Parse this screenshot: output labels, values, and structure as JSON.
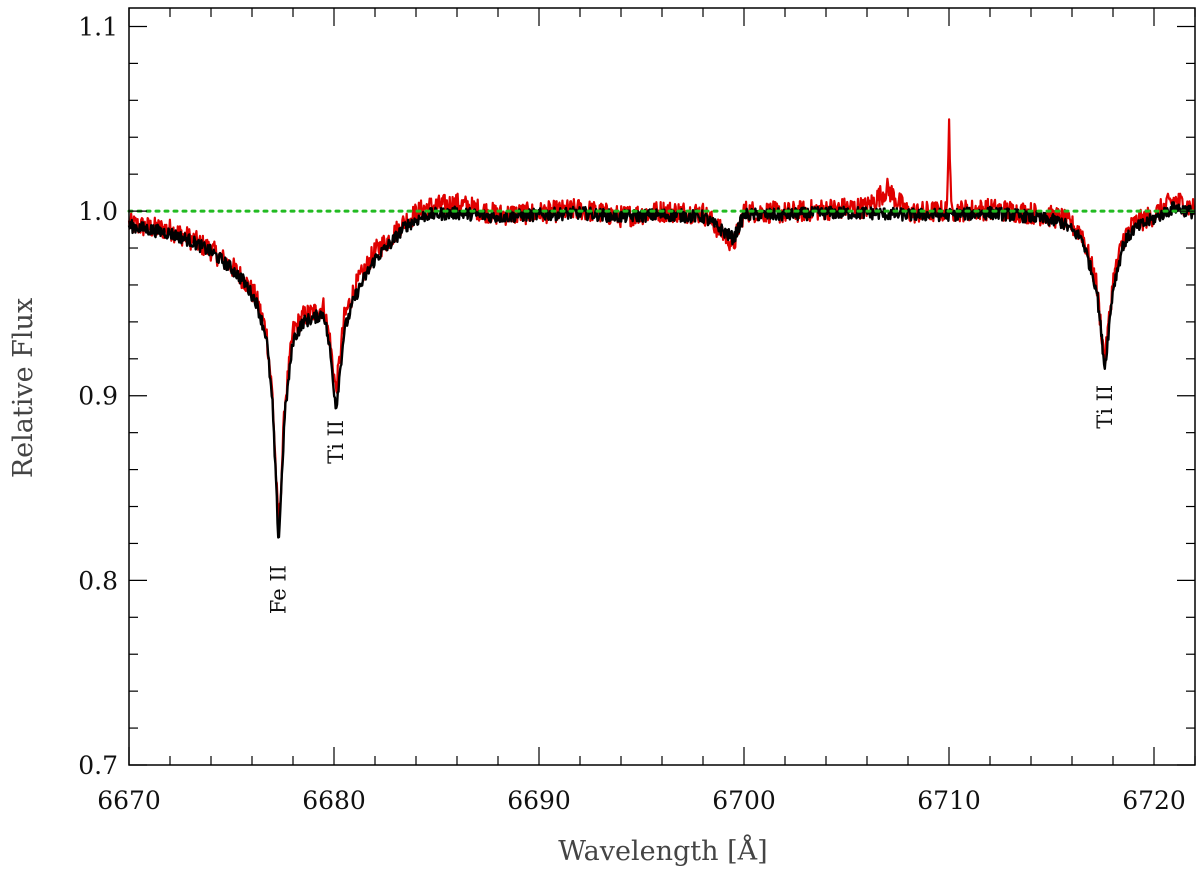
{
  "chart_data": {
    "type": "line",
    "title": "",
    "xlabel": "Wavelength [Å]",
    "ylabel": "Relative Flux",
    "xlim": [
      6670,
      6722
    ],
    "ylim": [
      0.7,
      1.11
    ],
    "x_ticks": [
      6670,
      6680,
      6690,
      6700,
      6710,
      6720
    ],
    "x_tick_labels": [
      "6670",
      "6680",
      "6690",
      "6700",
      "6710",
      "6720"
    ],
    "y_ticks": [
      0.7,
      0.8,
      0.9,
      1.0,
      1.1
    ],
    "y_tick_labels": [
      "0.7",
      "0.8",
      "0.9",
      "1.0",
      "1.1"
    ],
    "grid": false,
    "continuum": {
      "y": 1.0,
      "color": "#22bb22",
      "style": "dotted"
    },
    "series": [
      {
        "color": "#e00000",
        "x": [
          6670.0,
          6671.0,
          6672.0,
          6673.0,
          6674.0,
          6675.0,
          6675.6,
          6676.2,
          6676.7,
          6677.0,
          6677.3,
          6677.6,
          6678.0,
          6678.5,
          6679.0,
          6679.5,
          6679.8,
          6680.1,
          6680.5,
          6681.0,
          6681.5,
          6682.0,
          6682.8,
          6683.5,
          6684.5,
          6686.0,
          6688.0,
          6690.0,
          6692.0,
          6694.0,
          6696.0,
          6698.0,
          6699.5,
          6700.0,
          6702.0,
          6704.0,
          6706.0,
          6707.0,
          6708.0,
          6709.9,
          6710.0,
          6710.1,
          6712.0,
          6714.0,
          6715.5,
          6716.5,
          6717.2,
          6717.6,
          6718.0,
          6718.5,
          6719.0,
          6720.0,
          6721.0,
          6722.0
        ],
        "y": [
          0.993,
          0.991,
          0.99,
          0.985,
          0.979,
          0.97,
          0.963,
          0.953,
          0.935,
          0.9,
          0.825,
          0.895,
          0.935,
          0.943,
          0.945,
          0.948,
          0.93,
          0.902,
          0.942,
          0.958,
          0.968,
          0.978,
          0.986,
          0.995,
          1.002,
          1.004,
          0.998,
          0.999,
          1.001,
          0.997,
          1.0,
          0.999,
          0.982,
          1.0,
          0.999,
          1.001,
          1.002,
          1.012,
          0.999,
          1.0,
          1.052,
          1.0,
          1.001,
          0.999,
          0.996,
          0.988,
          0.96,
          0.918,
          0.962,
          0.985,
          0.993,
          0.998,
          1.006,
          1.001
        ]
      },
      {
        "color": "#000000",
        "x": [
          6670.0,
          6671.0,
          6672.0,
          6673.0,
          6674.0,
          6675.0,
          6675.6,
          6676.2,
          6676.7,
          6677.0,
          6677.3,
          6677.6,
          6678.0,
          6678.5,
          6679.0,
          6679.5,
          6679.8,
          6680.1,
          6680.5,
          6681.0,
          6681.5,
          6682.0,
          6682.8,
          6683.5,
          6684.5,
          6686.0,
          6688.0,
          6690.0,
          6692.0,
          6694.0,
          6696.0,
          6698.0,
          6699.5,
          6700.0,
          6702.0,
          6704.0,
          6706.0,
          6708.0,
          6710.0,
          6712.0,
          6714.0,
          6715.5,
          6716.5,
          6717.2,
          6717.6,
          6718.0,
          6718.5,
          6719.0,
          6720.0,
          6721.0,
          6722.0
        ],
        "y": [
          0.992,
          0.99,
          0.988,
          0.984,
          0.978,
          0.969,
          0.962,
          0.951,
          0.932,
          0.895,
          0.82,
          0.89,
          0.93,
          0.94,
          0.942,
          0.945,
          0.925,
          0.893,
          0.935,
          0.953,
          0.964,
          0.974,
          0.983,
          0.992,
          0.998,
          0.999,
          0.997,
          0.998,
          0.999,
          0.997,
          0.998,
          0.997,
          0.985,
          0.998,
          0.998,
          0.999,
          0.999,
          0.998,
          0.998,
          0.999,
          0.997,
          0.994,
          0.985,
          0.958,
          0.915,
          0.958,
          0.982,
          0.99,
          0.996,
          1.002,
          0.999
        ]
      }
    ],
    "annotations": [
      {
        "text": "Fe II",
        "x": 6677.3,
        "y": 0.795
      },
      {
        "text": "Ti II",
        "x": 6680.1,
        "y": 0.875
      },
      {
        "text": "Ti II",
        "x": 6717.6,
        "y": 0.894
      }
    ]
  }
}
